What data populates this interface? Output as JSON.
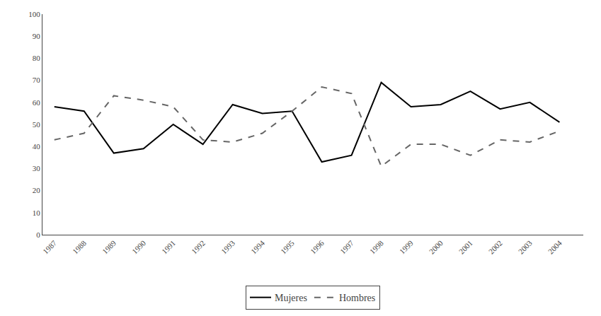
{
  "chart_data": {
    "type": "line",
    "x": [
      1987,
      1988,
      1989,
      1990,
      1991,
      1992,
      1993,
      1994,
      1995,
      1996,
      1997,
      1998,
      1999,
      2000,
      2001,
      2002,
      2003,
      2004
    ],
    "series": [
      {
        "name": "Mujeres",
        "color": "#000000",
        "line_style": "solid",
        "values": [
          58,
          56,
          37,
          39,
          50,
          41,
          59,
          55,
          56,
          33,
          36,
          69,
          58,
          59,
          65,
          57,
          60,
          51
        ]
      },
      {
        "name": "Hombres",
        "color": "#666666",
        "line_style": "dashed",
        "values": [
          43,
          46,
          63,
          61,
          58,
          43,
          42,
          46,
          56,
          67,
          64,
          31,
          41,
          41,
          36,
          43,
          42,
          47
        ]
      }
    ],
    "xlim": [
      1986.6,
      2004.8
    ],
    "xticks": [
      1987,
      1988,
      1989,
      1990,
      1991,
      1992,
      1993,
      1994,
      1995,
      1996,
      1997,
      1998,
      1999,
      2000,
      2001,
      2002,
      2003,
      2004
    ],
    "ylim": [
      0,
      100
    ],
    "yticks": [
      0,
      10,
      20,
      30,
      40,
      50,
      60,
      70,
      80,
      90,
      100
    ],
    "grid": false,
    "legend": "bottom"
  }
}
